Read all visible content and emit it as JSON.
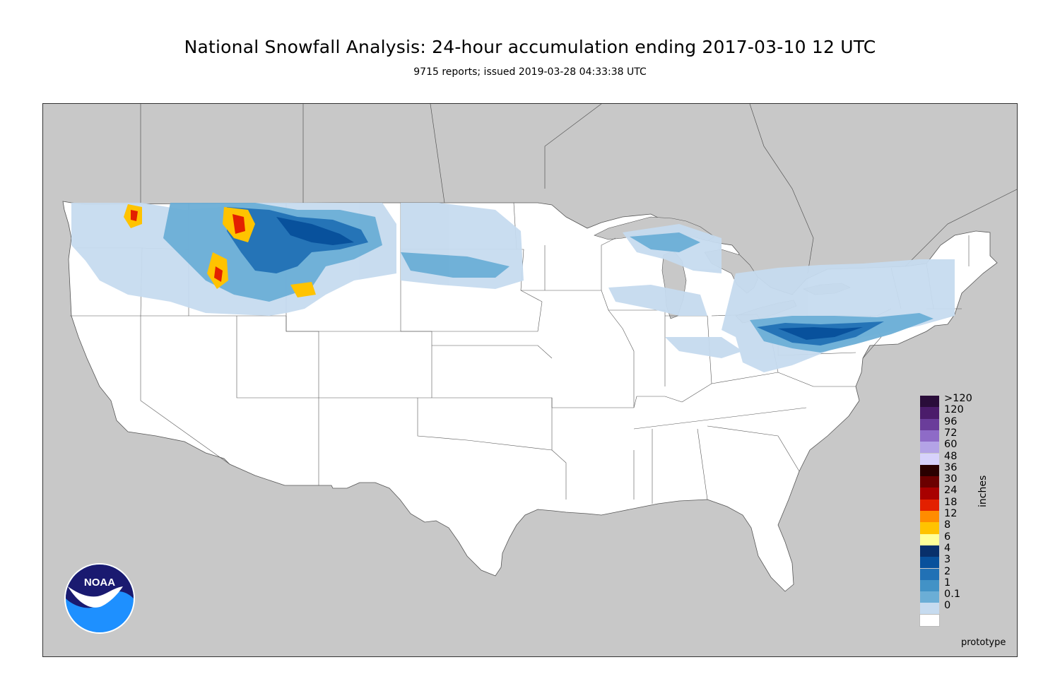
{
  "header": {
    "title": "National Snowfall Analysis: 24-hour accumulation ending 2017-03-10 12 UTC",
    "subtitle": "9715 reports; issued 2019-03-28 04:33:38 UTC"
  },
  "map": {
    "ocean_land_outside_color": "#c8c8c8",
    "us_land_color": "#ffffff",
    "border_color": "#555555"
  },
  "legend": {
    "units": "inches",
    "levels": [
      {
        "label": ">120",
        "color": "#2a0d3a"
      },
      {
        "label": "120",
        "color": "#4b1c6b"
      },
      {
        "label": "96",
        "color": "#6a3d9a"
      },
      {
        "label": "72",
        "color": "#8e6bc7"
      },
      {
        "label": "60",
        "color": "#b3a3e6"
      },
      {
        "label": "48",
        "color": "#d7d2fb"
      },
      {
        "label": "36",
        "color": "#2a0000"
      },
      {
        "label": "30",
        "color": "#6b0000"
      },
      {
        "label": "24",
        "color": "#a80000"
      },
      {
        "label": "18",
        "color": "#e32000"
      },
      {
        "label": "12",
        "color": "#ff8c00"
      },
      {
        "label": "8",
        "color": "#ffc300"
      },
      {
        "label": "6",
        "color": "#ffff99"
      },
      {
        "label": "4",
        "color": "#08306b"
      },
      {
        "label": "3",
        "color": "#08519c"
      },
      {
        "label": "2",
        "color": "#2171b5"
      },
      {
        "label": "1",
        "color": "#4292c6"
      },
      {
        "label": "0.1",
        "color": "#6baed6"
      },
      {
        "label": "0",
        "color": "#c6dbef"
      },
      {
        "label": "",
        "color": "#ffffff"
      }
    ]
  },
  "footer": {
    "note": "prototype"
  },
  "logo": {
    "text": "NOAA"
  }
}
